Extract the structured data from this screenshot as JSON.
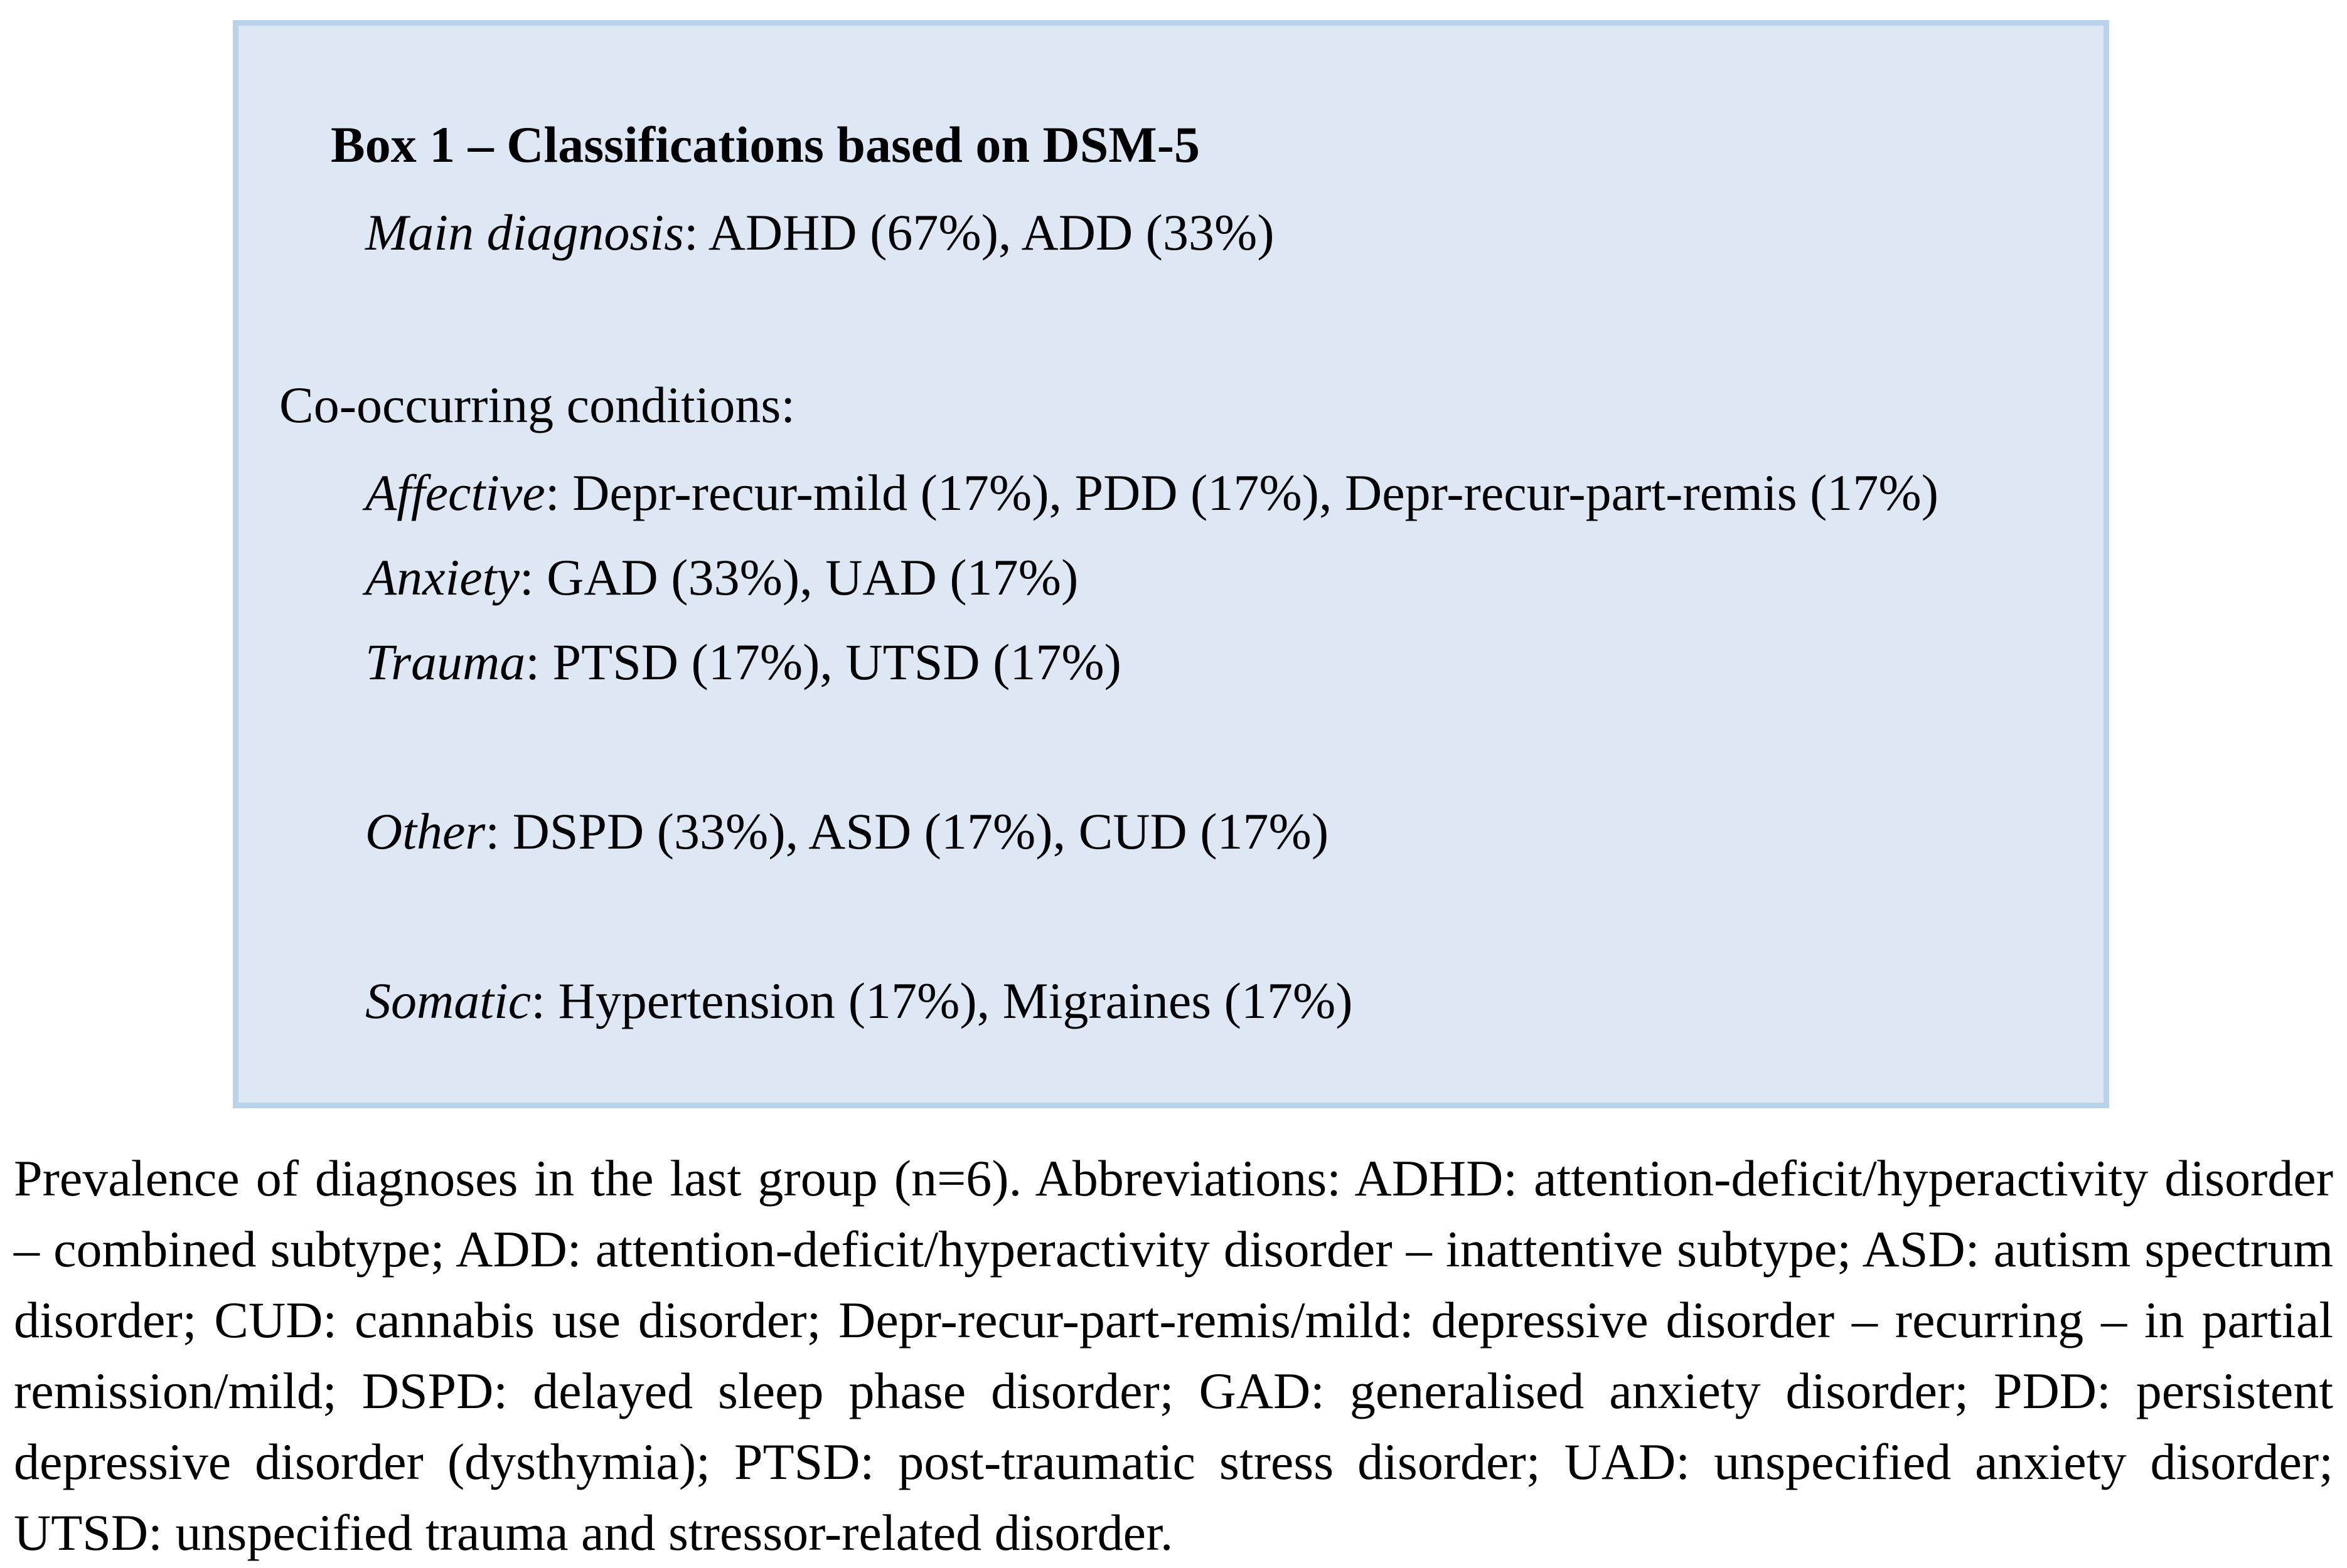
{
  "box": {
    "title": "Box 1 – Classifications based on DSM-5",
    "main_diagnosis": {
      "label": "Main diagnosis",
      "value": ": ADHD (67%), ADD (33%)"
    },
    "co_occurring_header": "Co-occurring conditions:",
    "conditions": [
      {
        "label": "Affective",
        "value": ": Depr-recur-mild (17%), PDD (17%), Depr-recur-part-remis (17%)"
      },
      {
        "label": "Anxiety",
        "value": ": GAD (33%), UAD (17%)"
      },
      {
        "label": "Trauma",
        "value": ": PTSD (17%), UTSD (17%)"
      },
      {
        "label": "Other",
        "value": ": DSPD (33%), ASD (17%), CUD (17%)"
      },
      {
        "label": "Somatic",
        "value": ": Hypertension (17%), Migraines (17%)"
      }
    ],
    "colors": {
      "fill": "#dde8f4",
      "border": "#b9d3ea"
    }
  },
  "caption": "Prevalence of diagnoses in the last group (n=6). Abbreviations: ADHD: attention-deficit/hyperactivity disorder – combined subtype; ADD: attention-deficit/hyperactivity disorder – inattentive subtype; ASD: autism spectrum disorder; CUD: cannabis use disorder; Depr-recur-part-remis/mild: depressive disorder – recurring – in partial remission/mild; DSPD: delayed sleep phase disorder; GAD: generalised anxiety disorder; PDD: persistent depressive disorder (dysthymia); PTSD: post-traumatic stress disorder; UAD: unspecified anxiety disorder; UTSD: unspecified trauma and stressor-related disorder."
}
